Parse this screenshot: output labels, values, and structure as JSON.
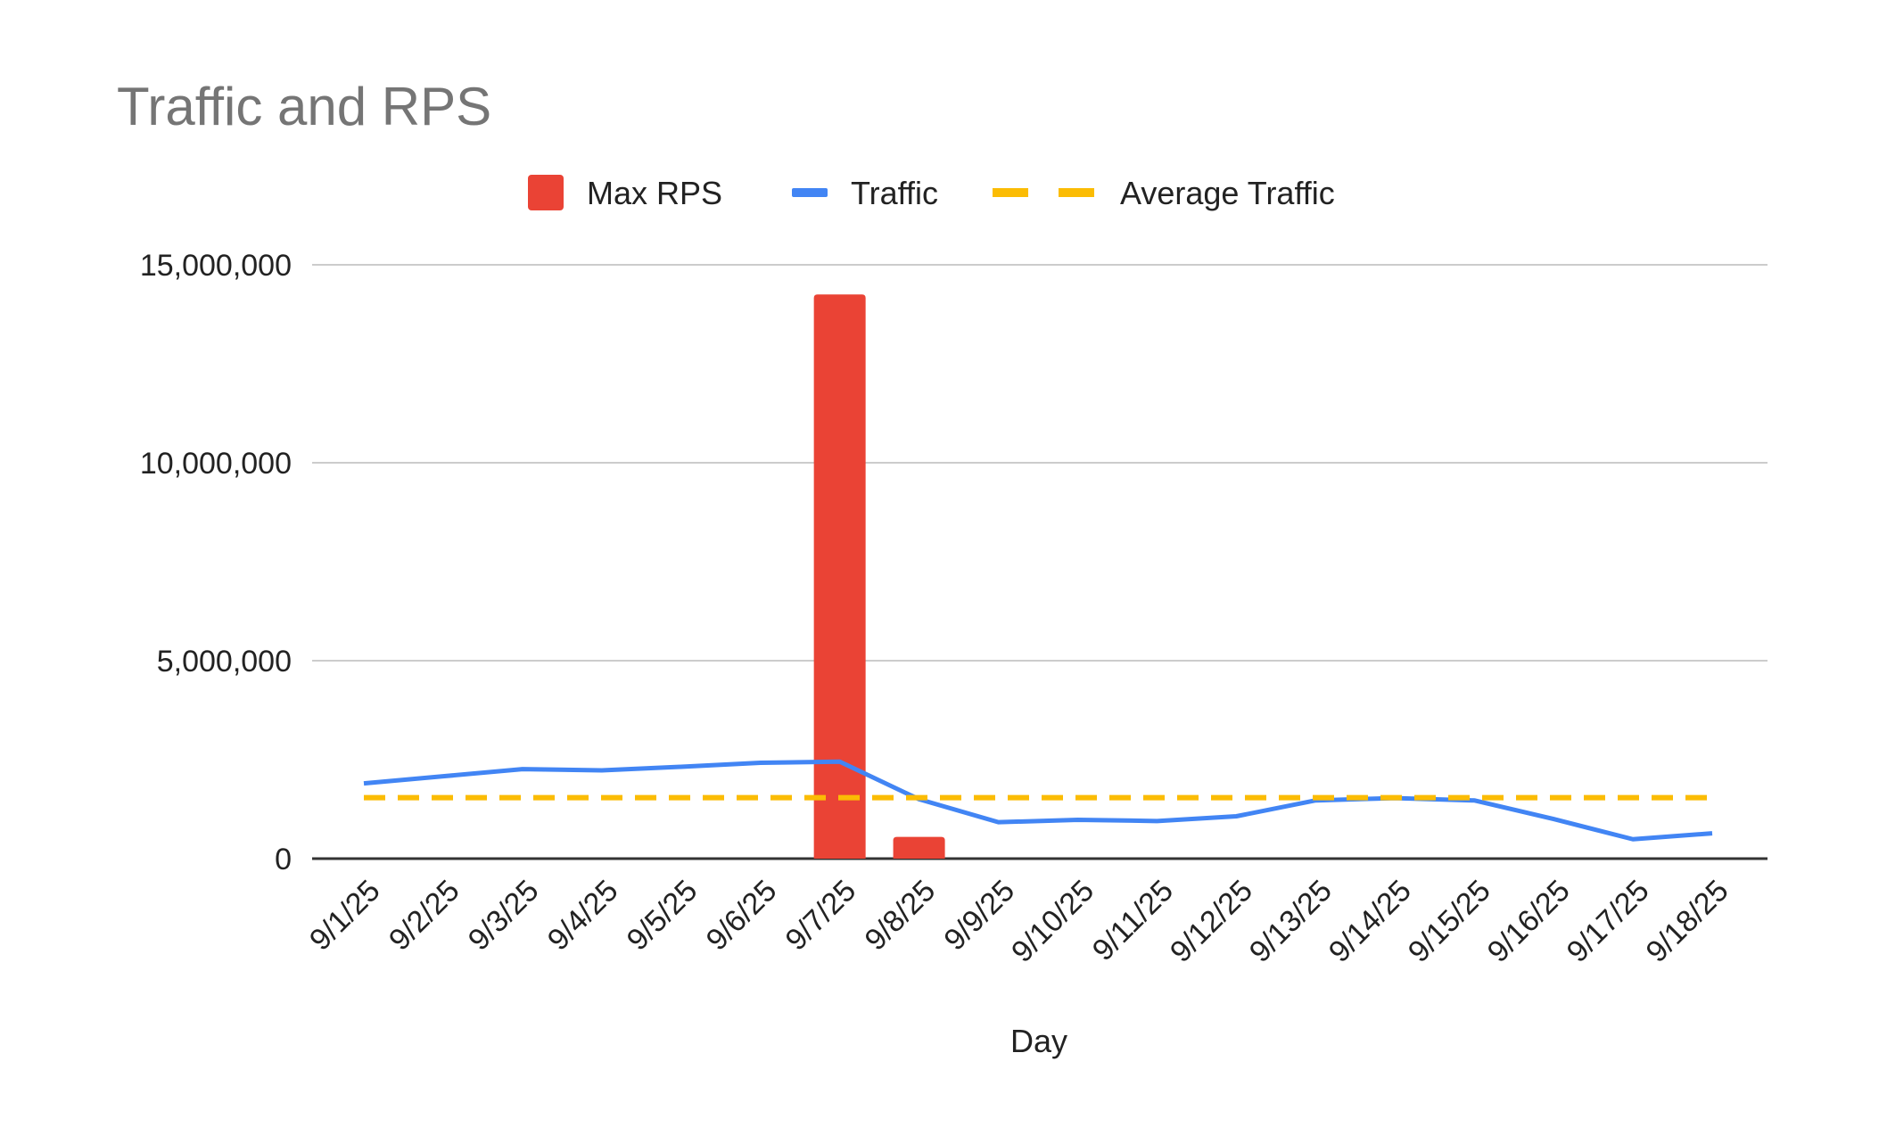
{
  "chart_data": {
    "type": "bar+line",
    "title": "Traffic and RPS",
    "xlabel": "Day",
    "ylabel": "",
    "ylim": [
      0,
      15000000
    ],
    "yticks": [
      0,
      5000000,
      10000000,
      15000000
    ],
    "ytick_labels": [
      "0",
      "5,000,000",
      "10,000,000",
      "15,000,000"
    ],
    "grid": true,
    "legend_position": "top",
    "categories": [
      "9/1/25",
      "9/2/25",
      "9/3/25",
      "9/4/25",
      "9/5/25",
      "9/6/25",
      "9/7/25",
      "9/8/25",
      "9/9/25",
      "9/10/25",
      "9/11/25",
      "9/12/25",
      "9/13/25",
      "9/14/25",
      "9/15/25",
      "9/16/25",
      "9/17/25",
      "9/18/25"
    ],
    "series": [
      {
        "name": "Max RPS",
        "type": "bar",
        "color": "#EA4335",
        "values": [
          0,
          0,
          0,
          0,
          0,
          0,
          14250000,
          550000,
          0,
          0,
          0,
          0,
          0,
          0,
          0,
          0,
          0,
          0
        ]
      },
      {
        "name": "Traffic",
        "type": "line",
        "color": "#4285F4",
        "values": [
          1900000,
          2080000,
          2260000,
          2230000,
          2320000,
          2420000,
          2450000,
          1500000,
          920000,
          980000,
          950000,
          1070000,
          1470000,
          1530000,
          1470000,
          1000000,
          490000,
          640000
        ]
      },
      {
        "name": "Average Traffic",
        "type": "line-dashed",
        "color": "#FBBC04",
        "values": [
          1540000,
          1540000,
          1540000,
          1540000,
          1540000,
          1540000,
          1540000,
          1540000,
          1540000,
          1540000,
          1540000,
          1540000,
          1540000,
          1540000,
          1540000,
          1540000,
          1540000,
          1540000
        ]
      }
    ]
  }
}
